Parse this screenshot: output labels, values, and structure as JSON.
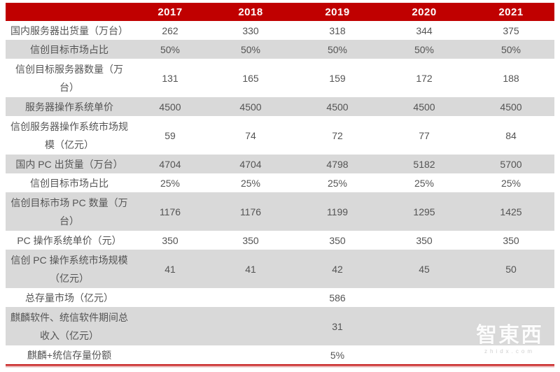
{
  "table": {
    "columns": [
      "",
      "2017",
      "2018",
      "2019",
      "2020",
      "2021"
    ],
    "rows": [
      {
        "label": "国内服务器出货量（万台）",
        "values": [
          "262",
          "330",
          "318",
          "344",
          "375"
        ]
      },
      {
        "label": "信创目标市场占比",
        "values": [
          "50%",
          "50%",
          "50%",
          "50%",
          "50%"
        ]
      },
      {
        "label": "信创目标服务器数量（万\n台）",
        "values": [
          "131",
          "165",
          "159",
          "172",
          "188"
        ]
      },
      {
        "label": "服务器操作系统单价",
        "values": [
          "4500",
          "4500",
          "4500",
          "4500",
          "4500"
        ]
      },
      {
        "label": "信创服务器操作系统市场规\n模（亿元）",
        "values": [
          "59",
          "74",
          "72",
          "77",
          "84"
        ]
      },
      {
        "label": "国内 PC 出货量（万台）",
        "values": [
          "4704",
          "4704",
          "4798",
          "5182",
          "5700"
        ]
      },
      {
        "label": "信创目标市场占比",
        "values": [
          "25%",
          "25%",
          "25%",
          "25%",
          "25%"
        ]
      },
      {
        "label": "信创目标市场 PC 数量（万\n台）",
        "values": [
          "1176",
          "1176",
          "1199",
          "1295",
          "1425"
        ]
      },
      {
        "label": "PC 操作系统单价（元）",
        "values": [
          "350",
          "350",
          "350",
          "350",
          "350"
        ]
      },
      {
        "label": "信创 PC 操作系统市场规模\n（亿元）",
        "values": [
          "41",
          "41",
          "42",
          "45",
          "50"
        ]
      },
      {
        "label": "总存量市场（亿元）",
        "values": [
          "",
          "",
          "586",
          "",
          ""
        ]
      },
      {
        "label": "麒麟软件、统信软件期间总\n收入（亿元）",
        "values": [
          "",
          "",
          "31",
          "",
          ""
        ]
      },
      {
        "label": "麒麟+统信存量份额",
        "values": [
          "",
          "",
          "5%",
          "",
          ""
        ]
      }
    ]
  },
  "watermark": {
    "logo": "智東西",
    "domain": "zhidx.com"
  },
  "colors": {
    "header_bg": "#c00000",
    "header_text": "#ffffff",
    "row_alt_bg": "#d9d9d9",
    "row_bg": "#ffffff",
    "cell_text": "#545454",
    "bottom_line": "#c00000"
  }
}
